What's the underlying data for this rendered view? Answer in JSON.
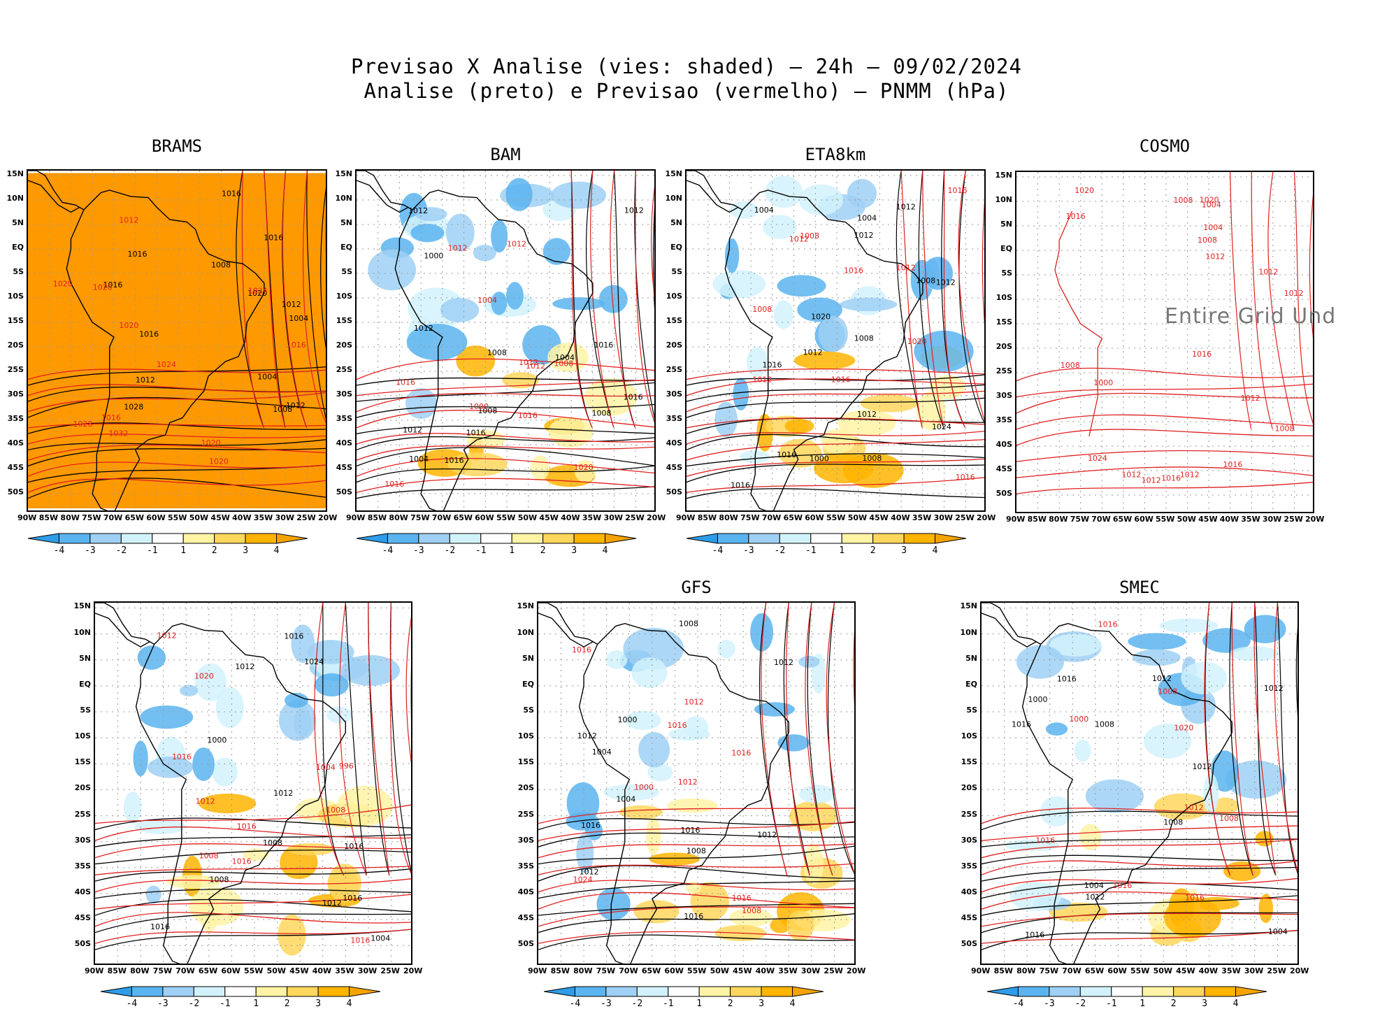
{
  "title_line1": "Previsao X Analise (vies: shaded) – 24h – 09/02/2024",
  "title_line2": "Analise (preto) e Previsao (vermelho) – PNMM (hPa)",
  "lat_labels": [
    "15N",
    "10N",
    "5N",
    "EQ",
    "5S",
    "10S",
    "15S",
    "20S",
    "25S",
    "30S",
    "35S",
    "40S",
    "45S",
    "50S"
  ],
  "lon_labels": [
    "90W",
    "85W",
    "80W",
    "75W",
    "70W",
    "65W",
    "60W",
    "55W",
    "50W",
    "45W",
    "40W",
    "35W",
    "30W",
    "25W",
    "20W"
  ],
  "colorbar": {
    "ticks": [
      "-4",
      "-3",
      "-2",
      "-1",
      "1",
      "2",
      "3",
      "4"
    ],
    "colors": [
      "#2e9ce8",
      "#5ab4f0",
      "#9fd0f5",
      "#d2f2fb",
      "#ffffff",
      "#fff3a6",
      "#ffd75c",
      "#ffb400",
      "#f5a300"
    ]
  },
  "colors": {
    "analysis_contour": "#000000",
    "forecast_contour": "#e02020",
    "bias_fill": "#ff9900",
    "grid": "#999999"
  },
  "panels": [
    {
      "id": "brams",
      "title": "BRAMS",
      "labels_black": [
        "1016",
        "1012",
        "1008",
        "1004",
        "1016",
        "1012",
        "1012",
        "1016",
        "1008",
        "1016",
        "1016",
        "1004",
        "1020",
        "1028"
      ],
      "labels_red": [
        "1020",
        "1012",
        "1016",
        "1020",
        "1024",
        "1020",
        "1016",
        "1020",
        "1024",
        "1032",
        "1028",
        "1020"
      ]
    },
    {
      "id": "bam",
      "title": "BAM",
      "labels_black": [
        "1016",
        "1012",
        "1012",
        "1008",
        "1004",
        "1012",
        "1016",
        "1008",
        "1016",
        "1012",
        "1008",
        "1004",
        "1000",
        "1016"
      ],
      "labels_red": [
        "1012",
        "1012",
        "1008",
        "1016",
        "1016",
        "1020",
        "1012",
        "1016",
        "1004",
        "1000",
        "1012"
      ]
    },
    {
      "id": "eta",
      "title": "ETA8km",
      "labels_black": [
        "1016",
        "1012",
        "1008",
        "1012",
        "1012",
        "1016",
        "1012",
        "1004",
        "1008",
        "1016",
        "1012",
        "1008",
        "1004",
        "1000",
        "1024",
        "1020"
      ],
      "labels_red": [
        "1016",
        "1012",
        "1008",
        "1016",
        "1012",
        "1016",
        "1012",
        "1020",
        "1008",
        "1016"
      ]
    },
    {
      "id": "cosmo",
      "title": "COSMO",
      "undefined_text": "Entire Grid Und",
      "labels_black": [],
      "labels_red": [
        "1016",
        "1012",
        "1012",
        "1012",
        "1008",
        "1016",
        "1012",
        "1008",
        "1012",
        "1016",
        "1020",
        "1004",
        "1008",
        "1016",
        "1012",
        "1024",
        "1020",
        "1008",
        "1004",
        "1000",
        "1012"
      ]
    },
    {
      "id": "p5",
      "title": "",
      "labels_black": [
        "1016",
        "1016",
        "1012",
        "1008",
        "1012",
        "1016",
        "1016",
        "1024",
        "1012",
        "1008",
        "1004",
        "1000"
      ],
      "labels_red": [
        "1016",
        "1016",
        "1012",
        "1008",
        "1016",
        "1020",
        "1016",
        "1012",
        "1008",
        "1004",
        "996"
      ]
    },
    {
      "id": "gfs",
      "title": "GFS",
      "labels_black": [
        "1016",
        "1012",
        "1012",
        "1008",
        "1004",
        "1012",
        "1016",
        "1016",
        "1012",
        "1008",
        "1004",
        "1000"
      ],
      "labels_red": [
        "1016",
        "1012",
        "1016",
        "1008",
        "1016",
        "1012",
        "1024",
        "1016",
        "1000"
      ]
    },
    {
      "id": "smec",
      "title": "SMEC",
      "labels_black": [
        "1016",
        "1012",
        "1012",
        "1008",
        "1004",
        "1012",
        "1016",
        "1016",
        "1012",
        "1008",
        "1004",
        "1000"
      ],
      "labels_red": [
        "1016",
        "1012",
        "1016",
        "1008",
        "1016",
        "1020",
        "1016",
        "1008",
        "1000"
      ]
    }
  ]
}
